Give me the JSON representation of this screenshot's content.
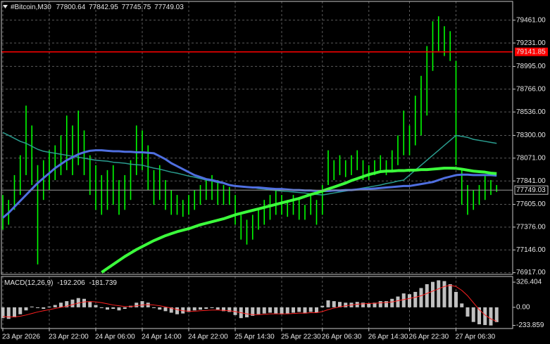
{
  "chart_data": [
    {
      "type": "price",
      "symbol": "#Bitcoin,M30",
      "quote": [
        77800.64,
        77842.95,
        77745.75,
        77749.03
      ],
      "categories": [
        "23 Apr 2026",
        null,
        null,
        null,
        null,
        null,
        null,
        null,
        "23 Apr 22:00",
        null,
        null,
        null,
        null,
        null,
        null,
        null,
        "24 Apr 06:00",
        null,
        null,
        null,
        null,
        null,
        null,
        null,
        "24 Apr 14:00",
        null,
        null,
        null,
        null,
        null,
        null,
        null,
        "24 Apr 22:00",
        null,
        null,
        null,
        null,
        null,
        null,
        null,
        "25 Apr 14:30",
        null,
        null,
        null,
        null,
        null,
        null,
        null,
        "25 Apr 22:30",
        null,
        null,
        null,
        null,
        null,
        null,
        "26 Apr 06:30",
        null,
        null,
        null,
        null,
        null,
        null,
        null,
        "26 Apr 14:30",
        null,
        null,
        null,
        null,
        null,
        null,
        "26 Apr 22:30",
        null,
        null,
        null,
        null,
        null,
        null,
        null,
        "27 Apr 06:30",
        null,
        null,
        null,
        null,
        null,
        null,
        null
      ],
      "high": [
        77700,
        77650,
        77900,
        78100,
        78600,
        78400,
        78000,
        78050,
        78150,
        78200,
        78300,
        78500,
        78400,
        78550,
        78350,
        78100,
        78000,
        77900,
        77950,
        78000,
        77850,
        77900,
        78050,
        78400,
        78350,
        78200,
        77950,
        78000,
        77850,
        77750,
        77700,
        77650,
        77700,
        77750,
        77800,
        77850,
        77900,
        77850,
        77800,
        77780,
        77700,
        77500,
        77450,
        77500,
        77550,
        77650,
        77700,
        77750,
        77700,
        77650,
        77700,
        77650,
        77600,
        77700,
        77650,
        77800,
        78150,
        78050,
        78100,
        78050,
        78100,
        78150,
        78050,
        78000,
        78050,
        78100,
        78050,
        78150,
        78300,
        78550,
        78400,
        78700,
        78900,
        79200,
        79450,
        79500,
        79400,
        79350,
        79050,
        77950,
        77800,
        77750,
        77800,
        77900,
        77850,
        77800
      ],
      "low": [
        77350,
        77400,
        77550,
        77700,
        77900,
        77800,
        77000,
        77650,
        77750,
        77850,
        77900,
        77950,
        77900,
        78000,
        77900,
        77700,
        77550,
        77500,
        77550,
        77600,
        77500,
        77550,
        77650,
        77900,
        77950,
        77750,
        77600,
        77650,
        77550,
        77500,
        77500,
        77480,
        77500,
        77550,
        77600,
        77650,
        77650,
        77600,
        77600,
        77600,
        77400,
        77250,
        77200,
        77250,
        77350,
        77400,
        77450,
        77500,
        77500,
        77480,
        77500,
        77450,
        77450,
        77500,
        77400,
        77500,
        77800,
        77850,
        77900,
        77880,
        77900,
        77950,
        77850,
        77850,
        77900,
        77950,
        77900,
        77950,
        78000,
        78100,
        78100,
        78200,
        78300,
        78500,
        78950,
        79150,
        79100,
        79050,
        78000,
        77600,
        77500,
        77550,
        77600,
        77650,
        77700,
        77730
      ],
      "color": "#00ff00",
      "lines": [
        {
          "color": "#2a9d8f",
          "values": [
            78330,
            78300,
            78270,
            78240,
            78220,
            78190,
            78160,
            78140,
            78130,
            78120,
            78110,
            78100,
            78090,
            78080,
            78070,
            78060,
            78050,
            78045,
            78040,
            78030,
            78025,
            78020,
            78010,
            78005,
            78000,
            77985,
            77970,
            77960,
            77945,
            77930,
            77920,
            77905,
            77890,
            77880,
            77865,
            77850,
            77840,
            77825,
            77815,
            77800,
            77790,
            77785,
            77780,
            77775,
            77765,
            77760,
            77750,
            77745,
            77740,
            77735,
            77730,
            77725,
            77720,
            77710,
            77705,
            77700,
            77710,
            77720,
            77730,
            77740,
            77750,
            77760,
            77770,
            77780,
            77790,
            77800,
            77815,
            77825,
            77840,
            77850,
            77900,
            77950,
            78000,
            78050,
            78100,
            78150,
            78200,
            78250,
            78300,
            78290,
            78280,
            78260,
            78250,
            78240,
            78230,
            78220
          ]
        },
        {
          "color": "#4f6fe0",
          "values": [
            77470,
            77520,
            77580,
            77640,
            77700,
            77760,
            77820,
            77870,
            77920,
            77970,
            78010,
            78050,
            78080,
            78110,
            78130,
            78145,
            78150,
            78150,
            78145,
            78140,
            78140,
            78135,
            78135,
            78130,
            78130,
            78125,
            78120,
            78090,
            78060,
            78020,
            77990,
            77960,
            77930,
            77900,
            77880,
            77860,
            77850,
            77835,
            77820,
            77800,
            77790,
            77785,
            77780,
            77775,
            77775,
            77770,
            77765,
            77760,
            77760,
            77755,
            77750,
            77750,
            77745,
            77745,
            77740,
            77740,
            77740,
            77745,
            77745,
            77750,
            77750,
            77755,
            77760,
            77760,
            77765,
            77770,
            77775,
            77780,
            77785,
            77790,
            77790,
            77800,
            77810,
            77820,
            77830,
            77850,
            77870,
            77885,
            77900,
            77905,
            77905,
            77900,
            77900,
            77900,
            77900,
            77895
          ]
        },
        {
          "color": "#3cff3c",
          "values": [
            null,
            null,
            null,
            null,
            null,
            null,
            null,
            null,
            null,
            null,
            null,
            null,
            null,
            null,
            null,
            null,
            null,
            76920,
            76960,
            77000,
            77040,
            77080,
            77115,
            77150,
            77180,
            77210,
            77240,
            77265,
            77290,
            77310,
            77330,
            77345,
            77360,
            77380,
            77400,
            77415,
            77430,
            77445,
            77460,
            77480,
            77500,
            77515,
            77530,
            77545,
            77560,
            77575,
            77590,
            77605,
            77620,
            77635,
            77650,
            77665,
            77685,
            77705,
            77720,
            77740,
            77760,
            77780,
            77800,
            77820,
            77845,
            77865,
            77885,
            77905,
            77920,
            77935,
            77940,
            77940,
            77945,
            77945,
            77950,
            77950,
            77955,
            77955,
            77960,
            77965,
            77970,
            77970,
            77968,
            77960,
            77950,
            77940,
            77935,
            77930,
            77920,
            77915
          ]
        }
      ],
      "ylim": [
        76900,
        79650
      ],
      "yticks": [
        {
          "value": 79461,
          "label": "79461.00"
        },
        {
          "value": 79231,
          "label": "79231.00"
        },
        {
          "value": 78995,
          "label": "78995.00"
        },
        {
          "value": 78766,
          "label": "78766.00"
        },
        {
          "value": 78536,
          "label": "78536.00"
        },
        {
          "value": 78300,
          "label": "78300.00"
        },
        {
          "value": 78071,
          "label": "78071.00"
        },
        {
          "value": 77841,
          "label": "77841.00"
        },
        {
          "value": 77605,
          "label": "77605.00"
        },
        {
          "value": 77376,
          "label": "77376.00"
        },
        {
          "value": 77146,
          "label": "77146.00"
        },
        {
          "value": 76917,
          "label": "76917.00"
        }
      ],
      "level": 79141.85,
      "level_color": "#ff0000",
      "last": 77749.03,
      "grid": true
    },
    {
      "type": "macd",
      "label": "MACD(12,26,9)",
      "main": -192.206,
      "signal_value": -181.739,
      "values": [
        -140,
        -150,
        -130,
        -90,
        -40,
        10,
        -10,
        -20,
        10,
        30,
        60,
        80,
        100,
        120,
        110,
        70,
        30,
        -10,
        -30,
        -20,
        -40,
        -20,
        20,
        60,
        80,
        60,
        -10,
        -30,
        -50,
        -70,
        -90,
        -80,
        -60,
        -40,
        -30,
        -20,
        -10,
        -30,
        -50,
        -60,
        -100,
        -140,
        -130,
        -110,
        -90,
        -80,
        -70,
        -80,
        -90,
        -80,
        -70,
        -60,
        -80,
        -60,
        -70,
        20,
        90,
        80,
        70,
        60,
        60,
        70,
        60,
        50,
        60,
        80,
        80,
        110,
        140,
        180,
        170,
        200,
        250,
        300,
        330,
        350,
        340,
        300,
        200,
        50,
        -120,
        -190,
        -220,
        -230,
        -235,
        -192
      ],
      "color": "#c0c0c0",
      "signal": {
        "color": "#ff2020",
        "values": [
          -120,
          -125,
          -125,
          -115,
          -100,
          -80,
          -60,
          -45,
          -30,
          -15,
          0,
          15,
          35,
          55,
          70,
          75,
          70,
          60,
          45,
          30,
          20,
          10,
          10,
          20,
          30,
          35,
          30,
          20,
          5,
          -10,
          -30,
          -45,
          -50,
          -50,
          -45,
          -40,
          -35,
          -35,
          -40,
          -45,
          -55,
          -70,
          -85,
          -95,
          -95,
          -90,
          -85,
          -85,
          -85,
          -85,
          -80,
          -75,
          -75,
          -70,
          -70,
          -55,
          -30,
          -10,
          5,
          20,
          30,
          40,
          45,
          50,
          52,
          58,
          62,
          70,
          85,
          100,
          115,
          130,
          150,
          180,
          210,
          240,
          270,
          285,
          270,
          220,
          150,
          60,
          -30,
          -100,
          -150,
          -182
        ]
      },
      "ylim": [
        -275,
        400
      ],
      "yticks": [
        326.404,
        {
          "value": 0,
          "label": "0.00"
        },
        -233.859
      ]
    }
  ]
}
